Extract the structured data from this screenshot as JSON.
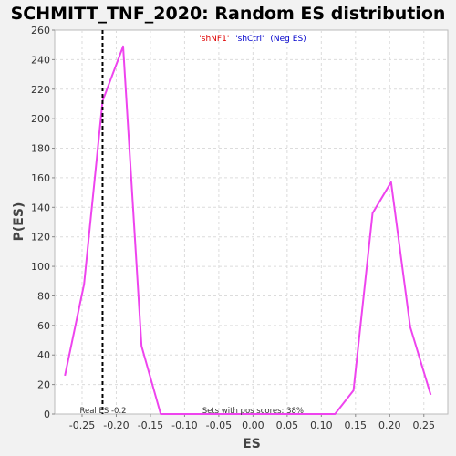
{
  "chart_data": {
    "type": "line",
    "title": "SCHMITT_TNF_2020: Random ES distribution",
    "xlabel": "ES",
    "ylabel": "P(ES)",
    "xlim": [
      -0.29,
      0.285
    ],
    "ylim": [
      0,
      260
    ],
    "x_ticks": [
      -0.25,
      -0.2,
      -0.15,
      -0.1,
      -0.05,
      0.0,
      0.05,
      0.1,
      0.15,
      0.2,
      0.25
    ],
    "x_tick_labels": [
      "-0.25",
      "-0.20",
      "-0.15",
      "-0.10",
      "-0.05",
      "0.00",
      "0.05",
      "0.10",
      "0.15",
      "0.20",
      "0.25"
    ],
    "y_ticks": [
      0,
      20,
      40,
      60,
      80,
      100,
      120,
      140,
      160,
      180,
      200,
      220,
      240,
      260
    ],
    "grid": true,
    "legend": {
      "position": "top-center",
      "entries": [
        {
          "text": "'shNF1'",
          "color": "#e00000"
        },
        {
          "text": "'shCtrl'",
          "color": "#0000cc"
        },
        {
          "text": "(Neg ES)",
          "color": "#0000cc"
        }
      ]
    },
    "series": [
      {
        "color": "#ee44ee",
        "x": [
          -0.275,
          -0.247,
          -0.22,
          -0.19,
          -0.163,
          -0.135,
          -0.107,
          0.0,
          0.12,
          0.147,
          0.175,
          0.202,
          0.23,
          0.26
        ],
        "y": [
          26,
          88,
          212,
          249,
          46,
          0,
          0,
          0,
          0,
          16,
          136,
          157,
          59,
          13
        ]
      }
    ],
    "reference_line": {
      "x": -0.22,
      "label": "Real ES -0.2"
    },
    "annotation": "Sets with pos scores: 38%",
    "annotation_x": 0.0
  },
  "colors": {
    "line": "#ee44ee",
    "background": "#f2f2f2",
    "plot_background": "#ffffff"
  }
}
